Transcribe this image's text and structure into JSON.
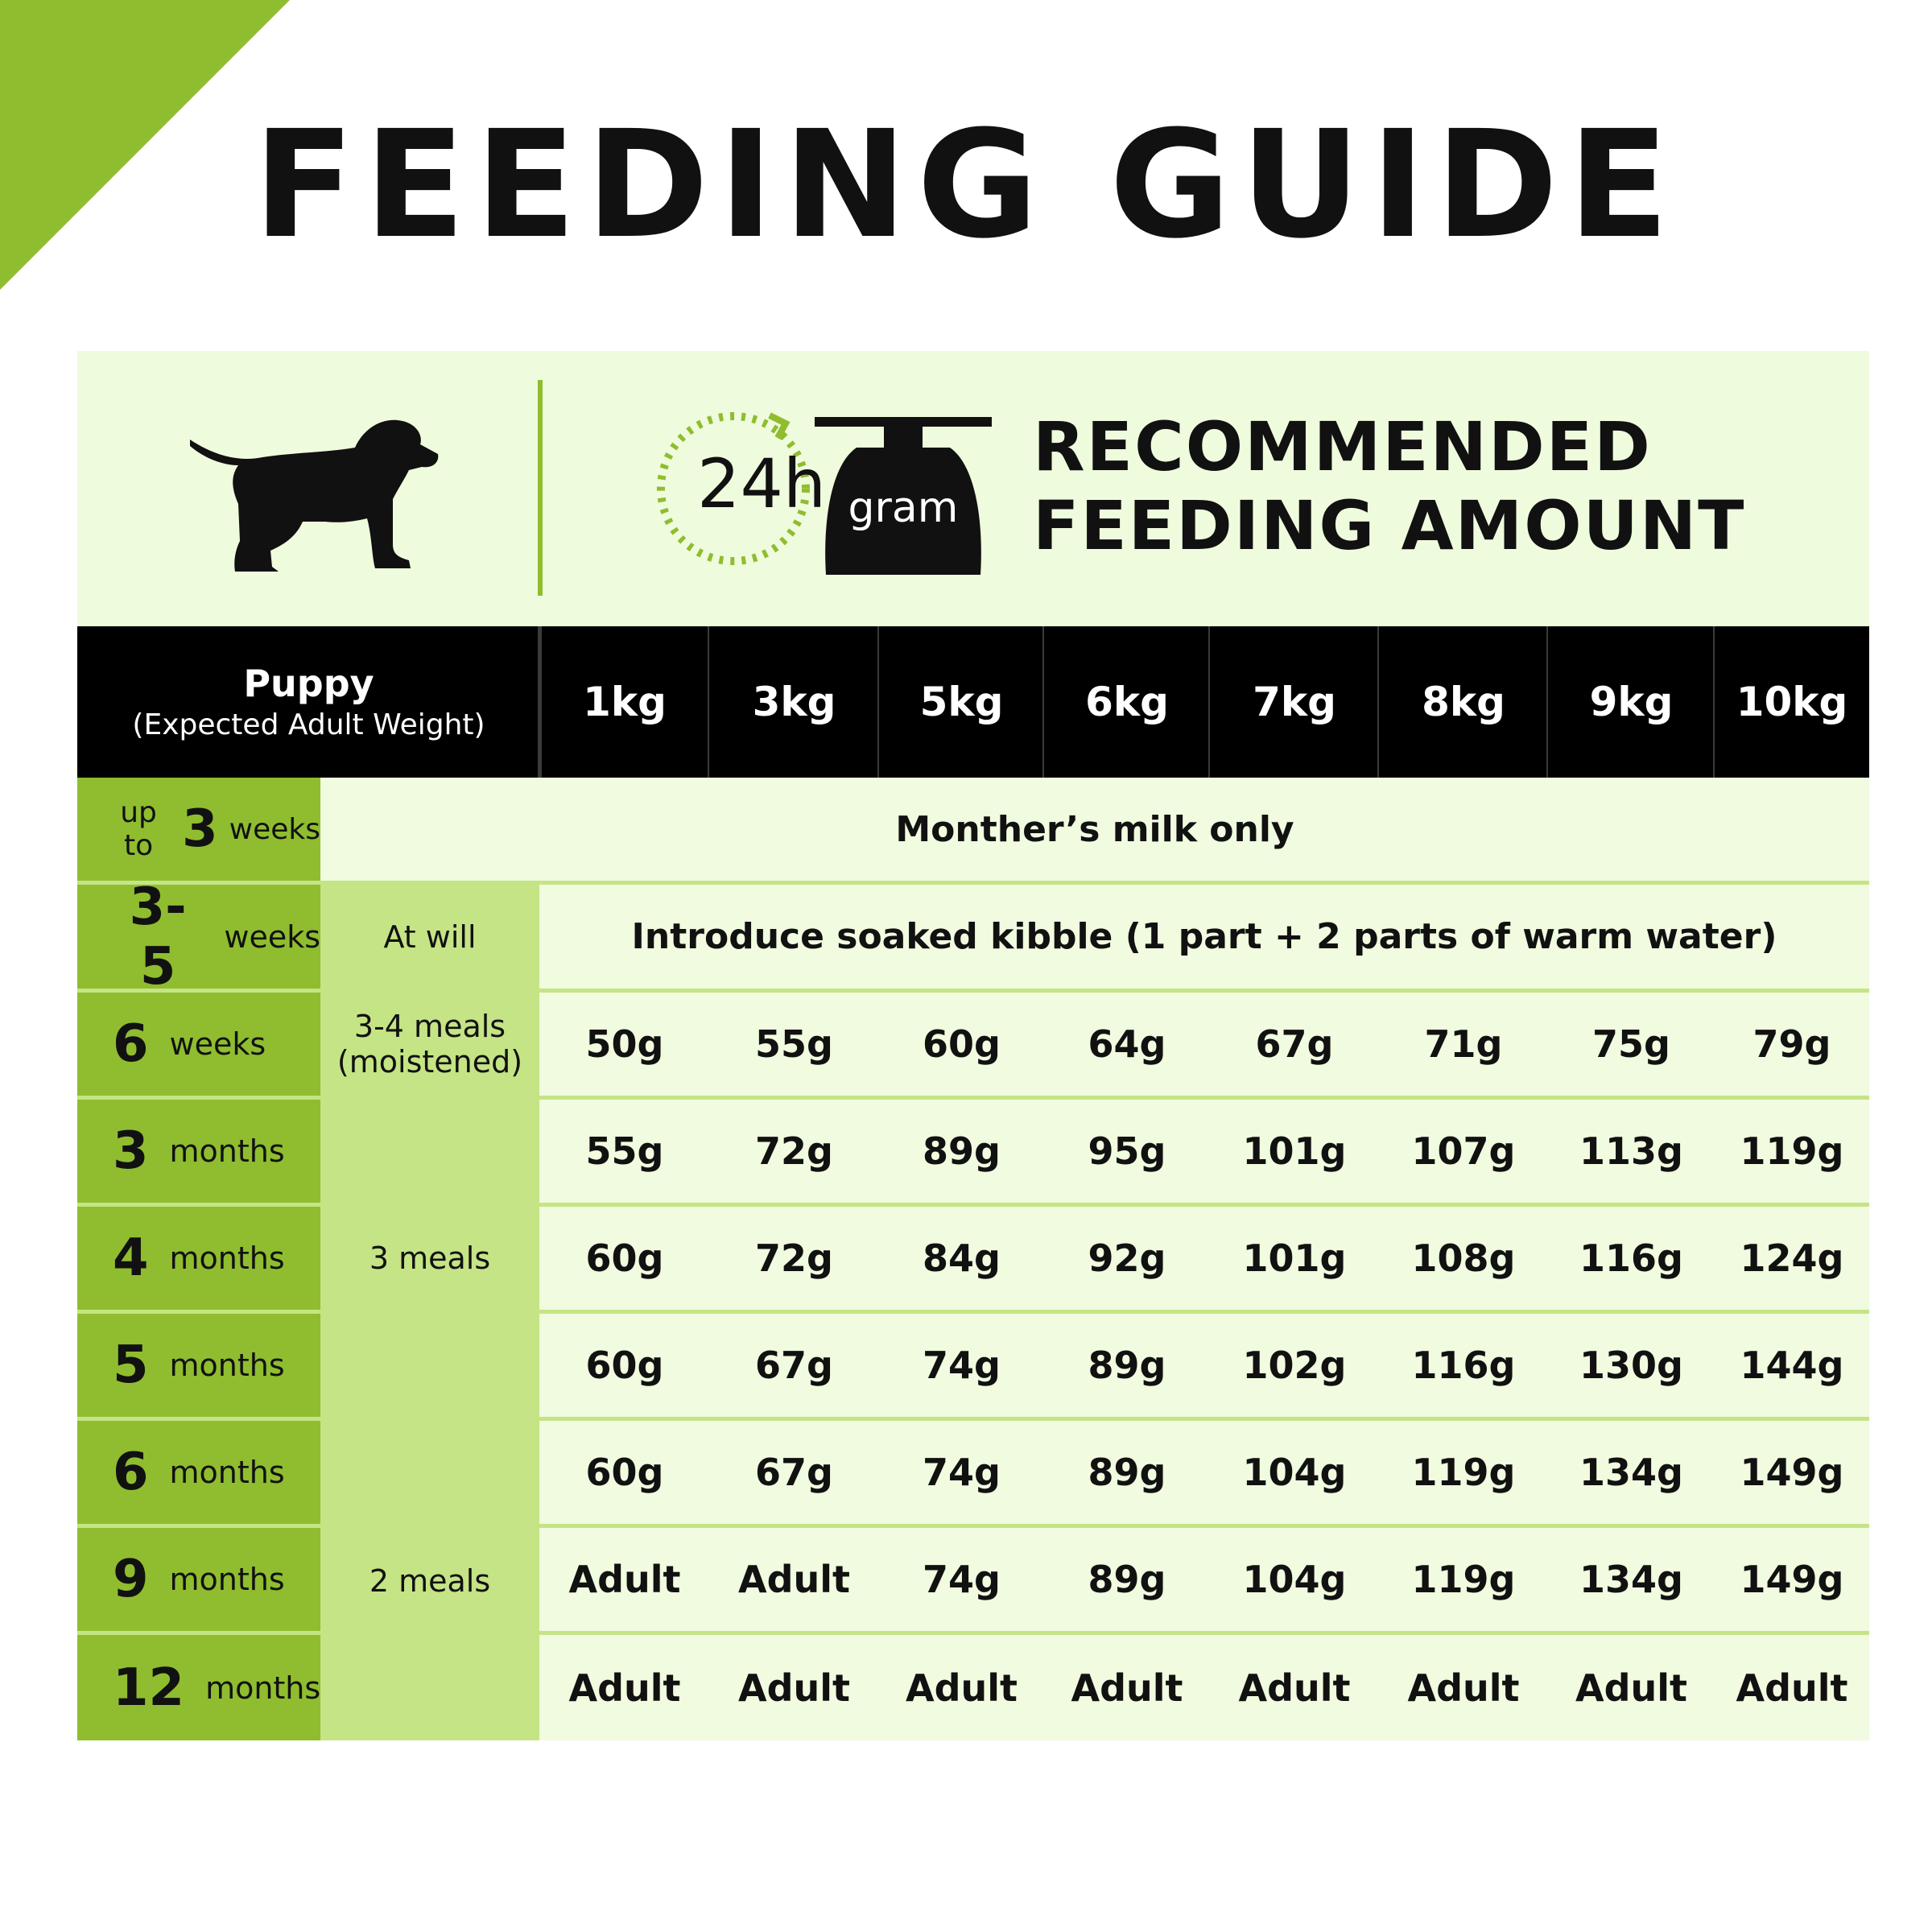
{
  "page": {
    "title": "FEEDING GUIDE"
  },
  "header": {
    "clock_label": "24h",
    "scale_label": "gram",
    "recommended_line1": "RECOMMENDED",
    "recommended_line2": "FEEDING AMOUNT"
  },
  "table": {
    "corner_title": "Puppy",
    "corner_subtitle": "(Expected Adult Weight)",
    "weights": [
      "1kg",
      "3kg",
      "5kg",
      "6kg",
      "7kg",
      "8kg",
      "9kg",
      "10kg"
    ],
    "row_3w": {
      "prefix": "up to",
      "num": "3",
      "unit": "weeks",
      "text": "Monther’s milk only"
    },
    "row_35w": {
      "num": "3-5",
      "unit": "weeks",
      "meal": "At will",
      "text": "Introduce soaked kibble (1 part + 2 parts of warm water)"
    },
    "row_6w": {
      "num": "6",
      "unit": "weeks",
      "meal_line1": "3-4 meals",
      "meal_line2": "(moistened)",
      "values": [
        "50g",
        "55g",
        "60g",
        "64g",
        "67g",
        "71g",
        "75g",
        "79g"
      ]
    },
    "meal_3": "3 meals",
    "meal_2": "2 meals",
    "rows": [
      {
        "num": "3",
        "unit": "months",
        "values": [
          "55g",
          "72g",
          "89g",
          "95g",
          "101g",
          "107g",
          "113g",
          "119g"
        ]
      },
      {
        "num": "4",
        "unit": "months",
        "values": [
          "60g",
          "72g",
          "84g",
          "92g",
          "101g",
          "108g",
          "116g",
          "124g"
        ]
      },
      {
        "num": "5",
        "unit": "months",
        "values": [
          "60g",
          "67g",
          "74g",
          "89g",
          "102g",
          "116g",
          "130g",
          "144g"
        ]
      },
      {
        "num": "6",
        "unit": "months",
        "values": [
          "60g",
          "67g",
          "74g",
          "89g",
          "104g",
          "119g",
          "134g",
          "149g"
        ]
      },
      {
        "num": "9",
        "unit": "months",
        "values": [
          "Adult",
          "Adult",
          "74g",
          "89g",
          "104g",
          "119g",
          "134g",
          "149g"
        ]
      },
      {
        "num": "12",
        "unit": "months",
        "values": [
          "Adult",
          "Adult",
          "Adult",
          "Adult",
          "Adult",
          "Adult",
          "Adult",
          "Adult"
        ]
      }
    ]
  },
  "colors": {
    "accent": "#8fbd2f",
    "light_green": "#c5e485",
    "panel": "#f0fbdf",
    "header_bg": "#000000"
  }
}
